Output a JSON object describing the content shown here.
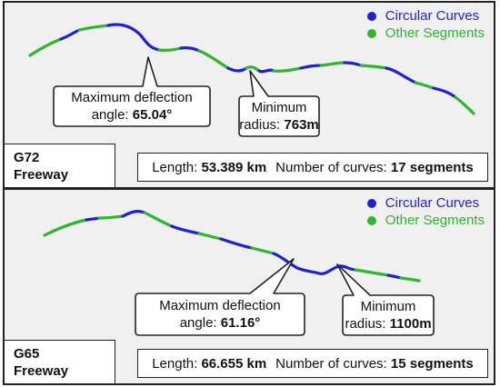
{
  "colors": {
    "curve": "#1f1fd6",
    "other": "#2fb52f"
  },
  "legend": {
    "curve_label": "Circular Curves",
    "other_label": "Other Segments"
  },
  "panels": {
    "g72": {
      "name_line1": "G72",
      "name_line2": "Freeway",
      "deflection_label_line1": "Maximum deflection",
      "deflection_label_line2": "angle: ",
      "deflection_value": "65.04°",
      "radius_label_line1": "Minimum",
      "radius_label_line2": "radius: ",
      "radius_value": "763m",
      "length_label": "Length: ",
      "length_value": "53.389 km",
      "curves_label": "Number of curves: ",
      "curves_value": "17 segments"
    },
    "g65": {
      "name_line1": "G65",
      "name_line2": "Freeway",
      "deflection_label_line1": "Maximum deflection",
      "deflection_label_line2": "angle: ",
      "deflection_value": "61.16°",
      "radius_label_line1": "Minimum",
      "radius_label_line2": "radius: ",
      "radius_value": "1100m",
      "length_label": "Length: ",
      "length_value": "66.655 km",
      "curves_label": "Number of curves: ",
      "curves_value": "15 segments"
    }
  }
}
